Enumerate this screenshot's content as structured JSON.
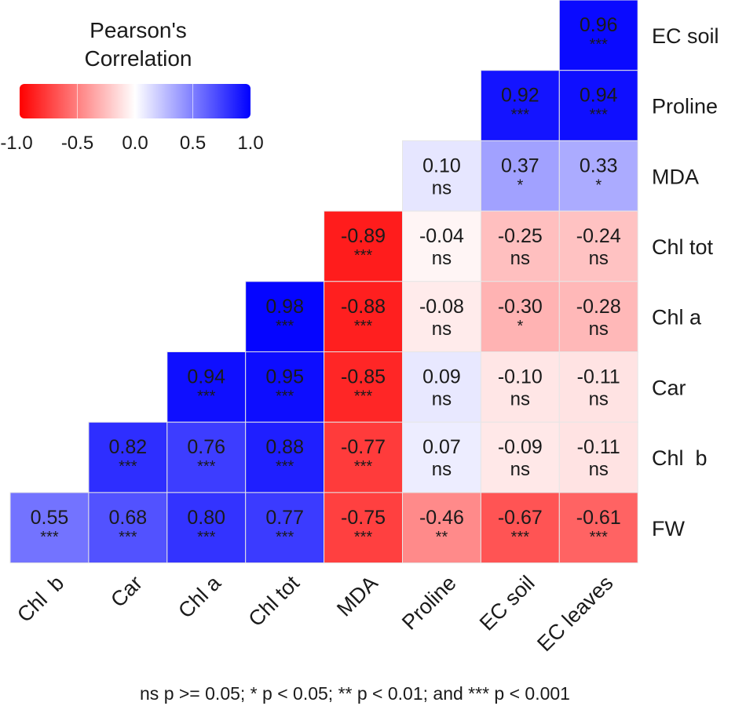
{
  "chart_data": {
    "type": "heatmap",
    "title": "",
    "rows": [
      "EC soil",
      "Proline",
      "MDA",
      "Chl tot",
      "Chl a",
      "Car",
      "Chl  b",
      "FW"
    ],
    "columns": [
      "Chl  b",
      "Car",
      "Chl a",
      "Chl tot",
      "MDA",
      "Proline",
      "EC soil",
      "EC leaves"
    ],
    "cells": [
      {
        "row": "EC soil",
        "col": "EC leaves",
        "value": 0.96,
        "sig": "***"
      },
      {
        "row": "Proline",
        "col": "EC soil",
        "value": 0.92,
        "sig": "***"
      },
      {
        "row": "Proline",
        "col": "EC leaves",
        "value": 0.94,
        "sig": "***"
      },
      {
        "row": "MDA",
        "col": "Proline",
        "value": 0.1,
        "sig": "ns"
      },
      {
        "row": "MDA",
        "col": "EC soil",
        "value": 0.37,
        "sig": "*"
      },
      {
        "row": "MDA",
        "col": "EC leaves",
        "value": 0.33,
        "sig": "*"
      },
      {
        "row": "Chl tot",
        "col": "MDA",
        "value": -0.89,
        "sig": "***"
      },
      {
        "row": "Chl tot",
        "col": "Proline",
        "value": -0.04,
        "sig": "ns"
      },
      {
        "row": "Chl tot",
        "col": "EC soil",
        "value": -0.25,
        "sig": "ns"
      },
      {
        "row": "Chl tot",
        "col": "EC leaves",
        "value": -0.24,
        "sig": "ns"
      },
      {
        "row": "Chl a",
        "col": "Chl tot",
        "value": 0.98,
        "sig": "***"
      },
      {
        "row": "Chl a",
        "col": "MDA",
        "value": -0.88,
        "sig": "***"
      },
      {
        "row": "Chl a",
        "col": "Proline",
        "value": -0.08,
        "sig": "ns"
      },
      {
        "row": "Chl a",
        "col": "EC soil",
        "value": -0.3,
        "sig": "*"
      },
      {
        "row": "Chl a",
        "col": "EC leaves",
        "value": -0.28,
        "sig": "ns"
      },
      {
        "row": "Car",
        "col": "Chl a",
        "value": 0.94,
        "sig": "***"
      },
      {
        "row": "Car",
        "col": "Chl tot",
        "value": 0.95,
        "sig": "***"
      },
      {
        "row": "Car",
        "col": "MDA",
        "value": -0.85,
        "sig": "***"
      },
      {
        "row": "Car",
        "col": "Proline",
        "value": 0.09,
        "sig": "ns"
      },
      {
        "row": "Car",
        "col": "EC soil",
        "value": -0.1,
        "sig": "ns"
      },
      {
        "row": "Car",
        "col": "EC leaves",
        "value": -0.11,
        "sig": "ns"
      },
      {
        "row": "Chl  b",
        "col": "Car",
        "value": 0.82,
        "sig": "***"
      },
      {
        "row": "Chl  b",
        "col": "Chl a",
        "value": 0.76,
        "sig": "***"
      },
      {
        "row": "Chl  b",
        "col": "Chl tot",
        "value": 0.88,
        "sig": "***"
      },
      {
        "row": "Chl  b",
        "col": "MDA",
        "value": -0.77,
        "sig": "***"
      },
      {
        "row": "Chl  b",
        "col": "Proline",
        "value": 0.07,
        "sig": "ns"
      },
      {
        "row": "Chl  b",
        "col": "EC soil",
        "value": -0.09,
        "sig": "ns"
      },
      {
        "row": "Chl  b",
        "col": "EC leaves",
        "value": -0.11,
        "sig": "ns"
      },
      {
        "row": "FW",
        "col": "Chl  b",
        "value": 0.55,
        "sig": "***"
      },
      {
        "row": "FW",
        "col": "Car",
        "value": 0.68,
        "sig": "***"
      },
      {
        "row": "FW",
        "col": "Chl a",
        "value": 0.8,
        "sig": "***"
      },
      {
        "row": "FW",
        "col": "Chl tot",
        "value": 0.77,
        "sig": "***"
      },
      {
        "row": "FW",
        "col": "MDA",
        "value": -0.75,
        "sig": "***"
      },
      {
        "row": "FW",
        "col": "Proline",
        "value": -0.46,
        "sig": "**"
      },
      {
        "row": "FW",
        "col": "EC soil",
        "value": -0.67,
        "sig": "***"
      },
      {
        "row": "FW",
        "col": "EC leaves",
        "value": -0.61,
        "sig": "***"
      }
    ],
    "color_scale": {
      "low": "#ff0000",
      "mid": "#ffffff",
      "high": "#0000ff",
      "range": [
        -1,
        1
      ]
    },
    "legend": {
      "title_line1": "Pearson's",
      "title_line2": "Correlation",
      "ticks": [
        "-1.0",
        "-0.5",
        "0.0",
        "0.5",
        "1.0"
      ],
      "tick_values": [
        -1,
        -0.5,
        0,
        0.5,
        1
      ],
      "placement": "top-left"
    },
    "caption": "ns p >= 0.05; * p < 0.05; ** p < 0.01; and *** p < 0.001",
    "grid": false
  }
}
